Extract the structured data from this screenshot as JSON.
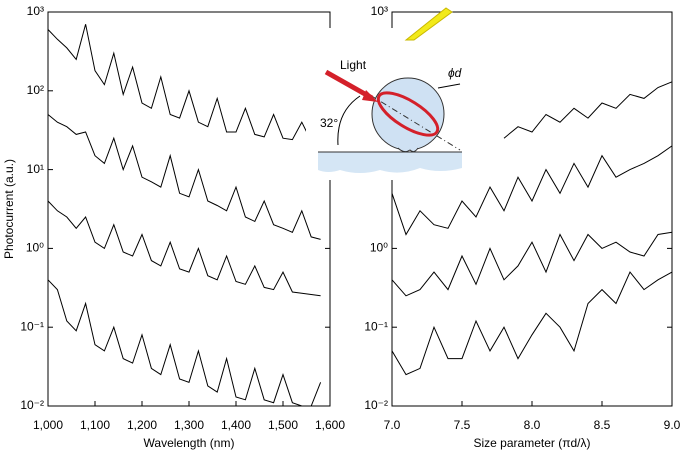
{
  "chart_data": [
    {
      "type": "line",
      "x_label": "Wavelength (nm)",
      "y_label": "Photocurrent (a.u.)",
      "log_y": true,
      "xlim": [
        1000,
        1600
      ],
      "ylim": [
        0.01,
        1000
      ],
      "xticks": [
        {
          "value": 1000,
          "label": "1,000"
        },
        {
          "value": 1100,
          "label": "1,100"
        },
        {
          "value": 1200,
          "label": "1,200"
        },
        {
          "value": 1300,
          "label": "1,300"
        },
        {
          "value": 1400,
          "label": "1,400"
        },
        {
          "value": 1500,
          "label": "1,500"
        },
        {
          "value": 1600,
          "label": "1,600"
        }
      ],
      "yticks": [
        {
          "value": 0.01,
          "label": "10⁻²"
        },
        {
          "value": 0.1,
          "label": "10⁻¹"
        },
        {
          "value": 1,
          "label": "10⁰"
        },
        {
          "value": 10,
          "label": "10¹"
        },
        {
          "value": 100,
          "label": "10²"
        },
        {
          "value": 1000,
          "label": "10³"
        }
      ],
      "x": [
        1000,
        1020,
        1040,
        1060,
        1080,
        1100,
        1120,
        1140,
        1160,
        1180,
        1200,
        1220,
        1240,
        1260,
        1280,
        1300,
        1320,
        1340,
        1360,
        1380,
        1400,
        1420,
        1440,
        1460,
        1480,
        1500,
        1520,
        1540,
        1560,
        1580
      ],
      "series": [
        {
          "color": "#000000",
          "values": [
            600,
            450,
            350,
            250,
            700,
            180,
            120,
            300,
            90,
            200,
            70,
            60,
            150,
            50,
            45,
            100,
            40,
            35,
            80,
            30,
            30,
            60,
            28,
            26,
            50,
            25,
            24,
            40,
            23,
            null
          ]
        },
        {
          "color": "#000000",
          "values": [
            50,
            40,
            35,
            28,
            30,
            15,
            12,
            25,
            10,
            20,
            8,
            7,
            6,
            15,
            5,
            4.5,
            10,
            4,
            3.5,
            3,
            6,
            2.5,
            2.2,
            4,
            2,
            1.8,
            1.6,
            3,
            1.4,
            1.3
          ]
        },
        {
          "color": "#000000",
          "values": [
            4,
            3,
            2.5,
            1.8,
            2.5,
            1.2,
            1,
            2,
            0.9,
            0.8,
            1.5,
            0.7,
            0.6,
            1.2,
            0.55,
            0.5,
            1,
            0.45,
            0.4,
            0.8,
            0.38,
            0.35,
            0.6,
            0.32,
            0.3,
            0.5,
            0.28,
            0.27,
            0.26,
            0.25
          ]
        },
        {
          "color": "#000000",
          "values": [
            0.4,
            0.3,
            0.12,
            0.09,
            0.2,
            0.06,
            0.05,
            0.1,
            0.04,
            0.035,
            0.08,
            0.03,
            0.025,
            0.06,
            0.022,
            0.02,
            0.05,
            0.018,
            0.015,
            0.04,
            0.013,
            0.012,
            0.03,
            0.012,
            0.011,
            0.025,
            0.011,
            0.01,
            0.01,
            0.02
          ]
        }
      ]
    },
    {
      "type": "line",
      "x_label": "Size parameter (πd/λ)",
      "log_y": true,
      "xlim": [
        7,
        9
      ],
      "ylim": [
        0.01,
        1000
      ],
      "xticks": [
        {
          "value": 7,
          "label": "7.0"
        },
        7.5,
        {
          "value": 8,
          "label": "8.0"
        },
        8.5,
        {
          "value": 9,
          "label": "9.0"
        }
      ],
      "yticks": [
        {
          "value": 0.01,
          "label": "10⁻²"
        },
        {
          "value": 0.1,
          "label": "10⁻¹"
        },
        {
          "value": 1,
          "label": "10⁰"
        },
        {
          "value": 1000,
          "label": "10³"
        }
      ],
      "x": [
        7.0,
        7.1,
        7.2,
        7.3,
        7.4,
        7.5,
        7.6,
        7.7,
        7.8,
        7.9,
        8.0,
        8.1,
        8.2,
        8.3,
        8.4,
        8.5,
        8.6,
        8.7,
        8.8,
        8.9,
        9.0
      ],
      "series": [
        {
          "color": "#000000",
          "values": [
            null,
            null,
            null,
            null,
            null,
            null,
            null,
            null,
            25,
            35,
            30,
            50,
            40,
            60,
            45,
            70,
            60,
            90,
            80,
            110,
            130
          ]
        },
        {
          "color": "#000000",
          "values": [
            5,
            1.5,
            3,
            2,
            1.8,
            4,
            2.5,
            6,
            3,
            8,
            4,
            10,
            5,
            12,
            6,
            15,
            8,
            10,
            12,
            15,
            20
          ]
        },
        {
          "color": "#000000",
          "values": [
            0.4,
            0.25,
            0.3,
            0.5,
            0.3,
            0.8,
            0.35,
            1,
            0.4,
            0.6,
            1.2,
            0.5,
            1.5,
            0.7,
            1.5,
            1,
            1.2,
            0.9,
            0.8,
            1.5,
            1.6
          ]
        },
        {
          "color": "#000000",
          "values": [
            0.05,
            0.025,
            0.03,
            0.1,
            0.04,
            0.04,
            0.12,
            0.05,
            0.1,
            0.04,
            0.08,
            0.15,
            0.1,
            0.05,
            0.2,
            0.3,
            0.2,
            0.5,
            0.3,
            0.4,
            0.5
          ]
        }
      ]
    }
  ],
  "inset": {
    "light": "Light",
    "angle": "32°",
    "diameter": "ϕd"
  }
}
